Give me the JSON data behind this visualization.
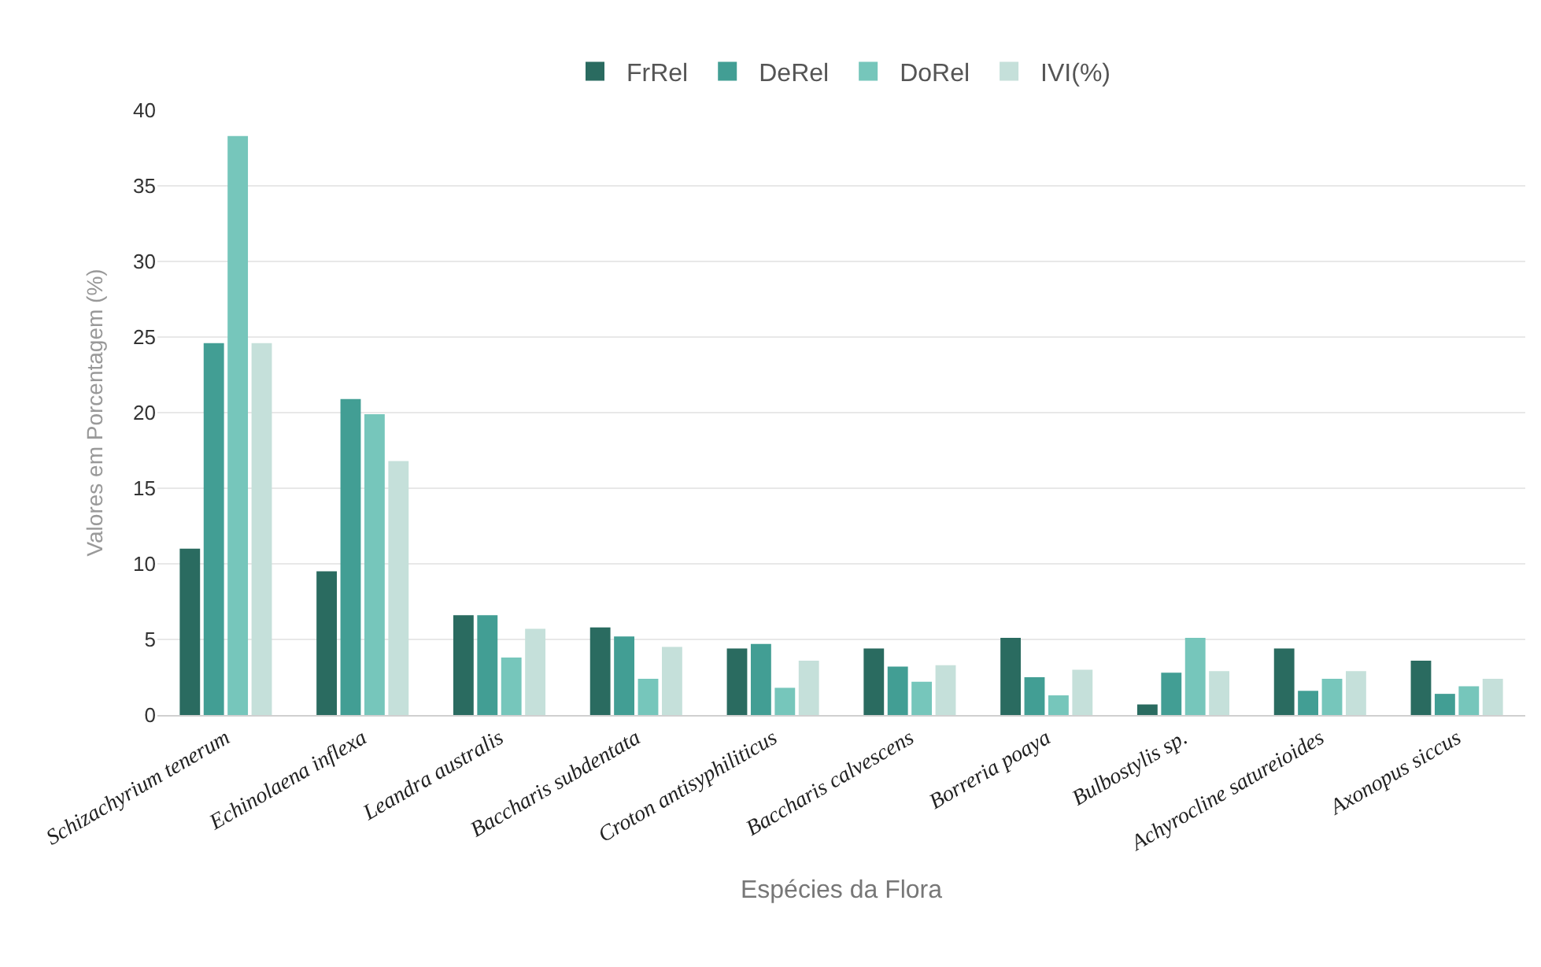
{
  "chart_data": {
    "type": "bar",
    "xlabel": "Espécies da Flora",
    "ylabel": "Valores em Porcentagem (%)",
    "categories": [
      "Schizachyrium tenerum",
      "Echinolaena inflexa",
      "Leandra australis",
      "Baccharis subdentata",
      "Croton antisyphiliticus",
      "Baccharis calvescens",
      "Borreria poaya",
      "Bulbostylis sp.",
      "Achyrocline satureioides",
      "Axonopus siccus"
    ],
    "series": [
      {
        "name": "FrRel",
        "color": "#2a6b60",
        "values": [
          11.0,
          9.5,
          6.6,
          5.8,
          4.4,
          4.4,
          5.1,
          0.7,
          4.4,
          3.6
        ]
      },
      {
        "name": "DeRel",
        "color": "#429e94",
        "values": [
          24.6,
          20.9,
          6.6,
          5.2,
          4.7,
          3.2,
          2.5,
          2.8,
          1.6,
          1.4
        ]
      },
      {
        "name": "DoRel",
        "color": "#76c6bb",
        "values": [
          38.3,
          19.9,
          3.8,
          2.4,
          1.8,
          2.2,
          1.3,
          5.1,
          2.4,
          1.9
        ]
      },
      {
        "name": "IVI(%)",
        "color": "#c5e0da",
        "values": [
          24.6,
          16.8,
          5.7,
          4.5,
          3.6,
          3.3,
          3.0,
          2.9,
          2.9,
          2.4
        ]
      }
    ],
    "ylim": [
      0,
      40
    ],
    "yticks": [
      0,
      5,
      10,
      15,
      20,
      25,
      30,
      35,
      40
    ],
    "grid": "y",
    "legend": "top"
  }
}
